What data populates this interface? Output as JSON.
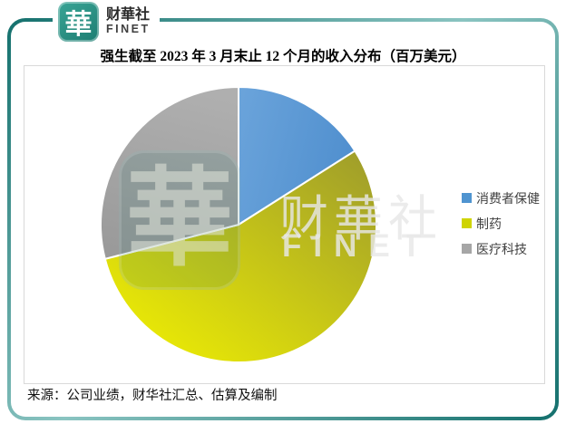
{
  "logo": {
    "icon_char": "華",
    "name_cn": "财華社",
    "name_en": "FINET"
  },
  "title": "强生截至 2023 年 3 月末止 12 个月的收入分布（百万美元）",
  "source": "来源：公司业绩，财华社汇总、估算及编制",
  "watermark": {
    "square_char": "華",
    "text_cn": "财華社",
    "text_en": "FINET"
  },
  "colors": {
    "frame_teal_dark": "#14706D",
    "frame_teal_light": "#8AC4C1",
    "logo_teal": "#2A9486",
    "plot_border": "#D9D9D9",
    "slice_stroke": "#FFFFFF"
  },
  "chart_data": {
    "type": "pie",
    "title": "强生截至 2023 年 3 月末止 12 个月的收入分布（百万美元）",
    "unit": "百万美元",
    "legend_position": "right",
    "start_angle_deg": 0,
    "direction": "clockwise",
    "data_labels_shown": false,
    "slices": [
      {
        "label": "消费者保健",
        "value_pct": 16,
        "color": "#4F94D0",
        "color_from": "#6BA4DB",
        "color_to": "#5190CF"
      },
      {
        "label": "制药",
        "value_pct": 55,
        "color": "#CFD400",
        "color_from": "#F4F400",
        "color_to": "#9D9B2C"
      },
      {
        "label": "医疗科技",
        "value_pct": 29,
        "color": "#A6A6A6",
        "color_from": "#AFAFAF",
        "color_to": "#9A9A9A"
      }
    ]
  }
}
